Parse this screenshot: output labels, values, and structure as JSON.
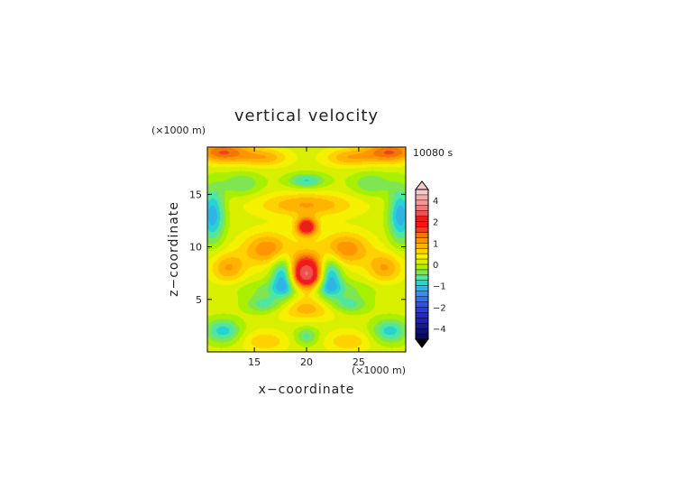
{
  "chart_data": {
    "type": "heatmap",
    "title": "vertical velocity",
    "xlabel": "x−coordinate",
    "ylabel": "z−coordinate",
    "x_unit": "(×1000 m)",
    "y_unit": "(×1000 m)",
    "time_label": "10080 s",
    "xlim": [
      10.5,
      29.5
    ],
    "ylim": [
      0,
      19.5
    ],
    "x_ticks": [
      15,
      20,
      25
    ],
    "y_ticks": [
      5,
      10,
      15
    ],
    "x_tick_labels": [
      "15",
      "20",
      "25"
    ],
    "y_tick_labels": [
      "5",
      "10",
      "15"
    ],
    "colorbar": {
      "min": -5,
      "max": 5,
      "levels": [
        -5,
        -4.5,
        -4,
        -3.5,
        -3,
        -2.5,
        -2,
        -1.75,
        -1.5,
        -1.25,
        -1,
        -0.75,
        -0.5,
        -0.25,
        0,
        0.25,
        0.5,
        0.75,
        1,
        1.25,
        1.5,
        1.75,
        2,
        2.5,
        3,
        3.5,
        4,
        4.5,
        5
      ],
      "colors": [
        "#0a0a5a",
        "#10107a",
        "#18189a",
        "#2020b4",
        "#2828c8",
        "#2c3cdc",
        "#3250e6",
        "#3a6cf0",
        "#3c8cf2",
        "#30b4e6",
        "#28d2d2",
        "#50e6a0",
        "#7ee650",
        "#a8f000",
        "#d8f000",
        "#f4f000",
        "#ffd200",
        "#ffb400",
        "#ff9600",
        "#f07800",
        "#f03c28",
        "#ff1414",
        "#e61e1e",
        "#f05050",
        "#f07878",
        "#f49696",
        "#f4aaaa",
        "#fac8c8"
      ],
      "tick_values": [
        4,
        2,
        1,
        0,
        -1,
        -2,
        -4
      ],
      "tick_labels": [
        "4",
        "2",
        "1",
        "0",
        "−1",
        "−2",
        "−4"
      ]
    },
    "features": [
      {
        "x": 20.0,
        "z": 7.4,
        "amp": 3.0,
        "sx": 1.1,
        "sz": 1.2
      },
      {
        "x": 20.0,
        "z": 11.9,
        "amp": 2.2,
        "sx": 0.7,
        "sz": 0.6
      },
      {
        "x": 17.8,
        "z": 7.3,
        "amp": -1.4,
        "sx": 0.8,
        "sz": 1.3
      },
      {
        "x": 22.2,
        "z": 7.3,
        "amp": -1.4,
        "sx": 0.8,
        "sz": 1.3
      },
      {
        "x": 16.3,
        "z": 9.8,
        "amp": 1.1,
        "sx": 1.7,
        "sz": 1.1
      },
      {
        "x": 23.7,
        "z": 9.8,
        "amp": 1.1,
        "sx": 1.7,
        "sz": 1.1
      },
      {
        "x": 20.0,
        "z": 14.0,
        "amp": 0.9,
        "sx": 3.2,
        "sz": 0.8
      },
      {
        "x": 20.0,
        "z": 16.3,
        "amp": -0.9,
        "sx": 1.3,
        "sz": 0.5
      },
      {
        "x": 11.0,
        "z": 13.0,
        "amp": -1.3,
        "sx": 0.8,
        "sz": 1.8
      },
      {
        "x": 29.0,
        "z": 13.0,
        "amp": -1.3,
        "sx": 0.8,
        "sz": 1.8
      },
      {
        "x": 12.0,
        "z": 19.0,
        "amp": 1.4,
        "sx": 1.8,
        "sz": 0.7
      },
      {
        "x": 28.0,
        "z": 19.0,
        "amp": 1.4,
        "sx": 1.8,
        "sz": 0.7
      },
      {
        "x": 16.0,
        "z": 18.5,
        "amp": 0.8,
        "sx": 1.6,
        "sz": 0.6
      },
      {
        "x": 24.0,
        "z": 18.5,
        "amp": 0.8,
        "sx": 1.6,
        "sz": 0.6
      },
      {
        "x": 13.8,
        "z": 16.0,
        "amp": -0.6,
        "sx": 1.4,
        "sz": 0.8
      },
      {
        "x": 26.2,
        "z": 16.0,
        "amp": -0.6,
        "sx": 1.4,
        "sz": 0.8
      },
      {
        "x": 16.0,
        "z": 4.5,
        "amp": -0.8,
        "sx": 1.3,
        "sz": 0.6
      },
      {
        "x": 24.0,
        "z": 4.5,
        "amp": -0.8,
        "sx": 1.3,
        "sz": 0.6
      },
      {
        "x": 20.0,
        "z": 4.0,
        "amp": 0.7,
        "sx": 2.2,
        "sz": 0.7
      },
      {
        "x": 12.0,
        "z": 2.0,
        "amp": -1.0,
        "sx": 1.2,
        "sz": 0.8
      },
      {
        "x": 28.0,
        "z": 2.0,
        "amp": -1.0,
        "sx": 1.2,
        "sz": 0.8
      },
      {
        "x": 16.0,
        "z": 1.0,
        "amp": 0.6,
        "sx": 1.5,
        "sz": 0.7
      },
      {
        "x": 24.0,
        "z": 1.0,
        "amp": 0.6,
        "sx": 1.5,
        "sz": 0.7
      },
      {
        "x": 20.0,
        "z": 6.0,
        "amp": -0.7,
        "sx": 4.0,
        "sz": 0.6
      },
      {
        "x": 12.5,
        "z": 8.0,
        "amp": 0.9,
        "sx": 1.2,
        "sz": 1.0
      },
      {
        "x": 27.5,
        "z": 8.0,
        "amp": 0.9,
        "sx": 1.2,
        "sz": 1.0
      },
      {
        "x": 20.0,
        "z": 1.5,
        "amp": -0.7,
        "sx": 0.8,
        "sz": 0.6
      }
    ]
  }
}
